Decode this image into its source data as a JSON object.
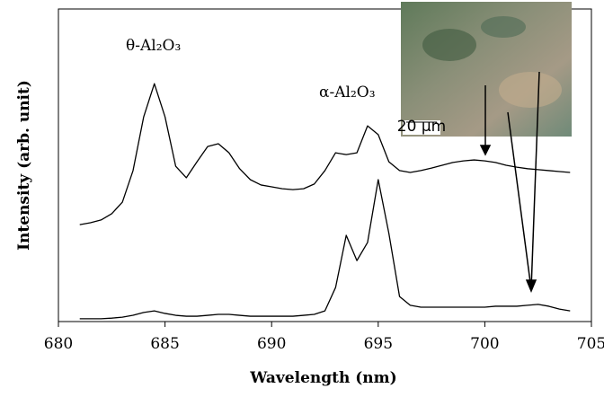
{
  "chart_data": {
    "type": "line",
    "x_label": "Wavelength (nm)",
    "y_label": "Intensity (arb. unit)",
    "annotations": [
      "θ-Al₂O₃",
      "α-Al₂O₃",
      "20 µm"
    ],
    "x": [
      681,
      681.5,
      682,
      682.5,
      683,
      683.5,
      684,
      684.5,
      685,
      685.5,
      686,
      686.5,
      687,
      687.5,
      688,
      688.5,
      689,
      689.5,
      690,
      690.5,
      691,
      691.5,
      692,
      692.5,
      693,
      693.5,
      694,
      694.5,
      695,
      695.5,
      696,
      696.5,
      697,
      697.5,
      698,
      698.5,
      699,
      699.5,
      700,
      700.5,
      701,
      701.5,
      702,
      702.5,
      703,
      703.5,
      704
    ],
    "series": [
      {
        "color": "#000000",
        "values": [
          31,
          31.6,
          32.5,
          34.5,
          38.2,
          48.3,
          65.5,
          76.1,
          65.5,
          49.7,
          46,
          51.1,
          56,
          56.9,
          54,
          48.9,
          45.4,
          43.7,
          43.1,
          42.5,
          42.2,
          42.5,
          44,
          48.3,
          54,
          53.4,
          54,
          62.6,
          59.8,
          51.1,
          48.3,
          47.7,
          48.3,
          49.1,
          50,
          50.9,
          51.4,
          51.7,
          51.4,
          50.9,
          50,
          49.4,
          48.9,
          48.6,
          48.3,
          48,
          47.7
        ]
      },
      {
        "color": "#000000",
        "values": [
          0.9,
          0.9,
          0.9,
          1.1,
          1.4,
          2,
          2.9,
          3.4,
          2.6,
          2,
          1.7,
          1.7,
          2,
          2.3,
          2.3,
          2,
          1.7,
          1.7,
          1.7,
          1.7,
          1.7,
          2,
          2.3,
          3.4,
          10.9,
          27.6,
          19.5,
          25.3,
          45.4,
          28.2,
          8,
          5.2,
          4.6,
          4.6,
          4.6,
          4.6,
          4.6,
          4.6,
          4.6,
          4.9,
          4.9,
          4.9,
          5.2,
          5.5,
          4.9,
          4,
          3.4
        ]
      }
    ],
    "xlim": [
      680,
      705
    ],
    "xticks": [
      680,
      685,
      690,
      695,
      700,
      705
    ],
    "ylim": [
      0,
      100
    ]
  }
}
